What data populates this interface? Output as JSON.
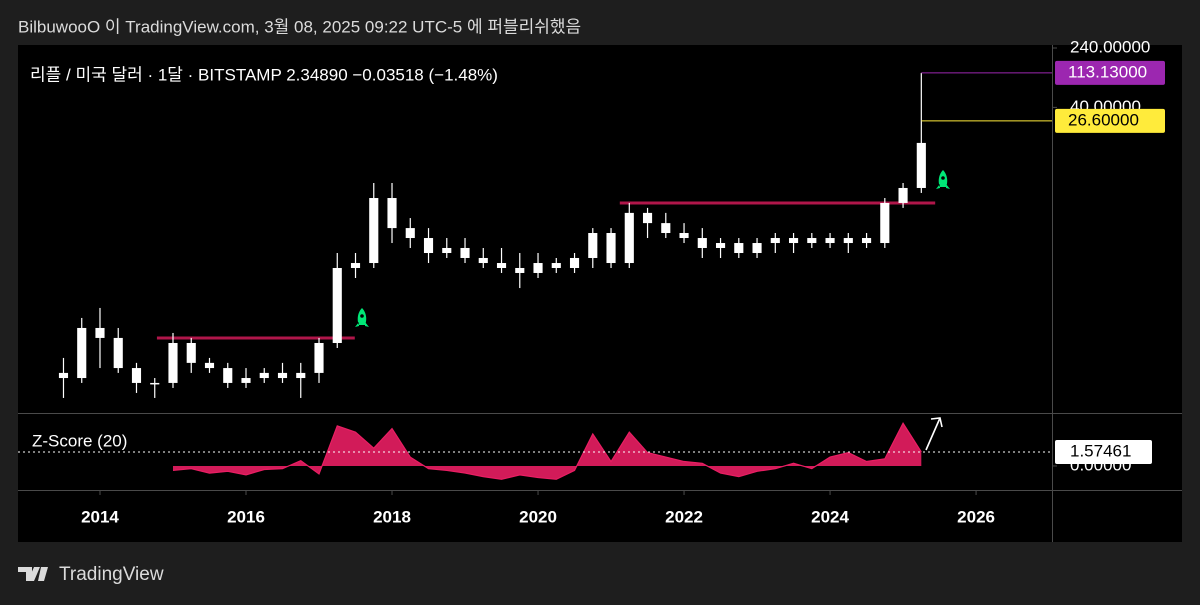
{
  "header": "BilbuwooO 이 TradingView.com, 3월 08, 2025 09:22 UTC-5 에 퍼블리쉬했음",
  "footer": "TradingView",
  "chart_data": {
    "type": "candlestick",
    "title": "리플 / 미국 달러 · 1달 · BITSTAMP  2.34890  −0.03518 (−1.48%)",
    "color": "#ffffff",
    "log_scale": true,
    "x": [
      2013.5,
      2013.75,
      2014,
      2014.25,
      2014.5,
      2014.75,
      2015,
      2015.25,
      2015.5,
      2015.75,
      2016,
      2016.25,
      2016.5,
      2016.75,
      2017,
      2017.25,
      2017.5,
      2017.75,
      2018,
      2018.25,
      2018.5,
      2018.75,
      2019,
      2019.25,
      2019.5,
      2019.75,
      2020,
      2020.25,
      2020.5,
      2020.75,
      2021,
      2021.25,
      2021.5,
      2021.75,
      2022,
      2022.25,
      2022.5,
      2022.75,
      2023,
      2023.25,
      2023.5,
      2023.75,
      2024,
      2024.25,
      2024.5,
      2024.75,
      2025,
      2025.25
    ],
    "open": [
      0.0133,
      0.0114,
      0.0516,
      0.0382,
      0.0154,
      0.00983,
      0.00983,
      0.0328,
      0.018,
      0.0154,
      0.00983,
      0.0114,
      0.0133,
      0.0114,
      0.0133,
      0.0328,
      0.315,
      0.366,
      2.6,
      1.05,
      0.778,
      0.495,
      0.576,
      0.426,
      0.366,
      0.315,
      0.271,
      0.366,
      0.315,
      0.426,
      0.905,
      0.366,
      1.66,
      1.22,
      0.905,
      0.778,
      0.576,
      0.669,
      0.495,
      0.669,
      0.778,
      0.669,
      0.778,
      0.669,
      0.778,
      0.669,
      2.24,
      3.52
    ],
    "high": [
      0.0209,
      0.0698,
      0.0944,
      0.0516,
      0.018,
      0.0114,
      0.0444,
      0.0382,
      0.0209,
      0.018,
      0.0154,
      0.0154,
      0.018,
      0.018,
      0.0382,
      0.495,
      0.495,
      4.09,
      4.09,
      1.42,
      1.05,
      0.778,
      0.778,
      0.576,
      0.576,
      0.495,
      0.495,
      0.426,
      0.495,
      1.05,
      1.05,
      2.24,
      1.93,
      1.66,
      1.22,
      1.05,
      0.778,
      0.778,
      0.778,
      0.905,
      0.905,
      0.905,
      0.905,
      0.905,
      0.905,
      2.6,
      4.09,
      113.13
    ],
    "low": [
      0.00625,
      0.00983,
      0.0154,
      0.0133,
      0.00727,
      0.00625,
      0.00845,
      0.0133,
      0.0133,
      0.00845,
      0.00845,
      0.00983,
      0.00983,
      0.00625,
      0.00983,
      0.0282,
      0.233,
      0.315,
      0.669,
      0.576,
      0.366,
      0.426,
      0.366,
      0.315,
      0.271,
      0.172,
      0.233,
      0.271,
      0.271,
      0.315,
      0.315,
      0.315,
      0.778,
      0.778,
      0.669,
      0.426,
      0.426,
      0.426,
      0.426,
      0.495,
      0.495,
      0.576,
      0.576,
      0.495,
      0.576,
      0.576,
      1.93,
      3.03
    ],
    "close": [
      0.0114,
      0.0516,
      0.0382,
      0.0154,
      0.00983,
      0.00983,
      0.0328,
      0.018,
      0.0154,
      0.00983,
      0.0114,
      0.0133,
      0.0114,
      0.0133,
      0.0328,
      0.315,
      0.366,
      2.6,
      1.05,
      0.778,
      0.495,
      0.576,
      0.426,
      0.366,
      0.315,
      0.271,
      0.366,
      0.315,
      0.426,
      0.905,
      0.366,
      1.66,
      1.22,
      0.905,
      0.778,
      0.576,
      0.669,
      0.495,
      0.669,
      0.778,
      0.669,
      0.778,
      0.669,
      0.778,
      0.669,
      2.24,
      3.52,
      13.7
    ],
    "xlim": [
      2012.877,
      2027.04
    ],
    "xticks": [
      2014,
      2016,
      2018,
      2020,
      2022,
      2024,
      2026
    ],
    "ylim": [
      0.00397,
      262.7
    ],
    "yticks": [
      {
        "value": 240,
        "label": "240.00000"
      },
      {
        "value": 40,
        "label": "40.00000"
      }
    ],
    "levels": {
      "color": "#b0164a",
      "items": [
        {
          "value": 0.0382,
          "x": [
            2014.78,
            2017.49
          ]
        },
        {
          "value": 2.24,
          "x": [
            2021.12,
            2025.44
          ]
        }
      ]
    },
    "price_labels": [
      {
        "value": 113.13,
        "label": "113.13000",
        "color": "#9c27b0"
      },
      {
        "value": 26.6,
        "label": "26.60000",
        "color": "#ffeb3b"
      }
    ],
    "indicator": {
      "type": "area",
      "name": "Z-Score (20)",
      "color": "#e91e63",
      "x": [
        2015,
        2015.25,
        2015.5,
        2015.75,
        2016,
        2016.25,
        2016.5,
        2016.75,
        2017,
        2017.25,
        2017.5,
        2017.75,
        2018,
        2018.25,
        2018.5,
        2018.75,
        2019,
        2019.25,
        2019.5,
        2019.75,
        2020,
        2020.25,
        2020.5,
        2020.75,
        2021,
        2021.25,
        2021.5,
        2021.75,
        2022,
        2022.25,
        2022.5,
        2022.75,
        2023,
        2023.25,
        2023.5,
        2023.75,
        2024,
        2024.25,
        2024.5,
        2024.75,
        2025,
        2025.25
      ],
      "values": [
        -0.5,
        -0.3,
        -0.8,
        -0.6,
        -1.0,
        -0.4,
        -0.3,
        0.6,
        -0.9,
        4.5,
        3.8,
        2.0,
        4.2,
        1.0,
        -0.3,
        -0.5,
        -0.8,
        -1.2,
        -1.5,
        -1.0,
        -1.3,
        -1.5,
        -0.5,
        3.6,
        0.5,
        3.8,
        1.5,
        1.0,
        0.5,
        0.3,
        -0.8,
        -1.2,
        -0.6,
        -0.3,
        0.3,
        -0.3,
        1.0,
        1.5,
        0.5,
        0.8,
        4.8,
        1.57461
      ],
      "ylim": [
        -2.7,
        5.84
      ],
      "yticks": [
        {
          "value": 0,
          "label": "0.00000"
        }
      ]
    }
  }
}
